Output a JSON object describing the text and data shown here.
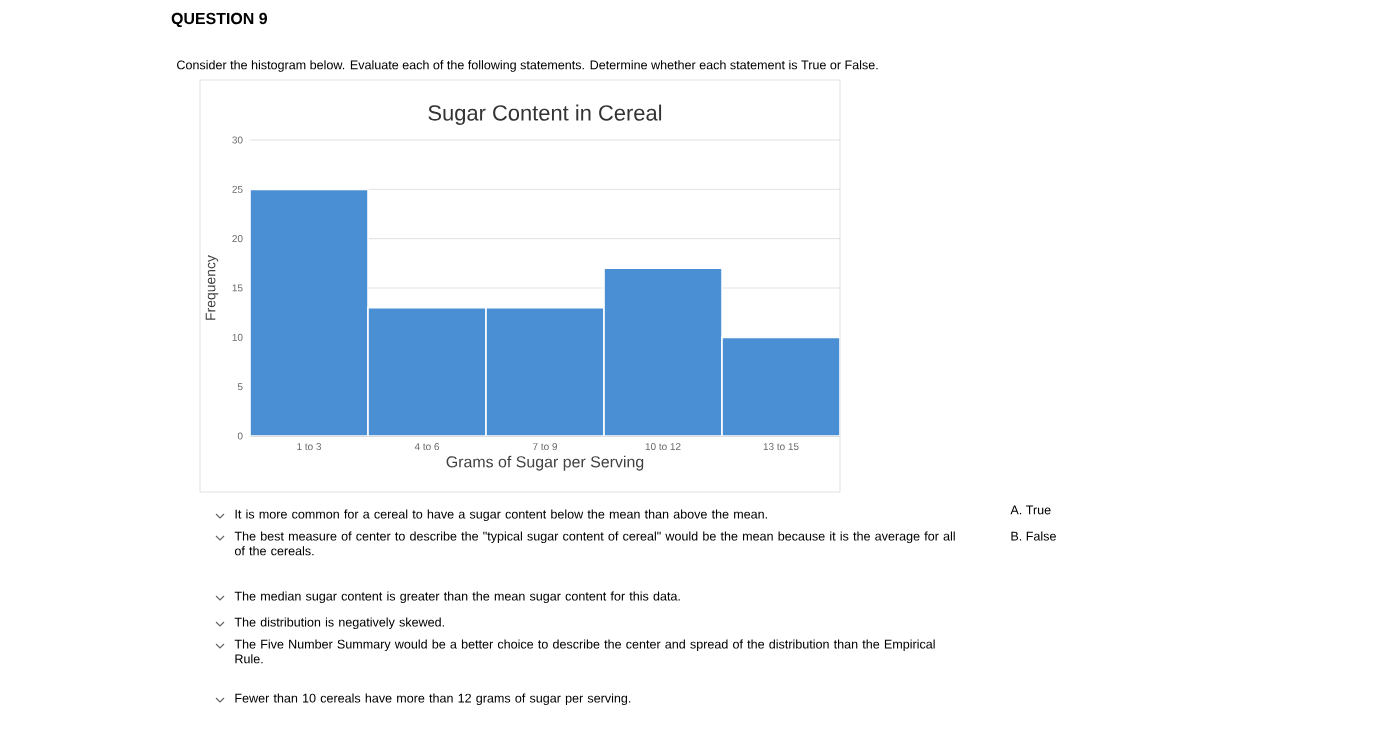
{
  "chart_data": {
    "type": "bar",
    "title": "Sugar Content in Cereal",
    "xlabel": "Grams of Sugar per Serving",
    "ylabel": "Frequency",
    "categories": [
      "1 to 3",
      "4 to 6",
      "7 to 9",
      "10 to 12",
      "13 to 15"
    ],
    "values": [
      25,
      13,
      13,
      17,
      10
    ],
    "color": "#4a8fd4",
    "ylim": [
      0,
      30
    ],
    "yticks": [
      0,
      5,
      10,
      15,
      20,
      25,
      30
    ],
    "grid": "y",
    "annotations": [
      "QUESTION 9",
      "Consider the histogram below. Evaluate each of the following statements. Determine whether each statement is True or False.",
      "It is more common for a cereal to have a sugar content below the mean than above the mean.",
      "The best measure of center to describe the \"typical sugar content of cereal\" would be the mean because it is the average for all of the cereals.",
      "The median sugar content is greater than the mean sugar content for this data.",
      "The distribution is negatively skewed.",
      "The Five Number Summary would be a better choice to describe the center and spread of the distribution than the Empirical Rule.",
      "Fewer than 10 cereals have more than 12 grams of sugar per serving.",
      "A. True",
      "B. False"
    ]
  }
}
